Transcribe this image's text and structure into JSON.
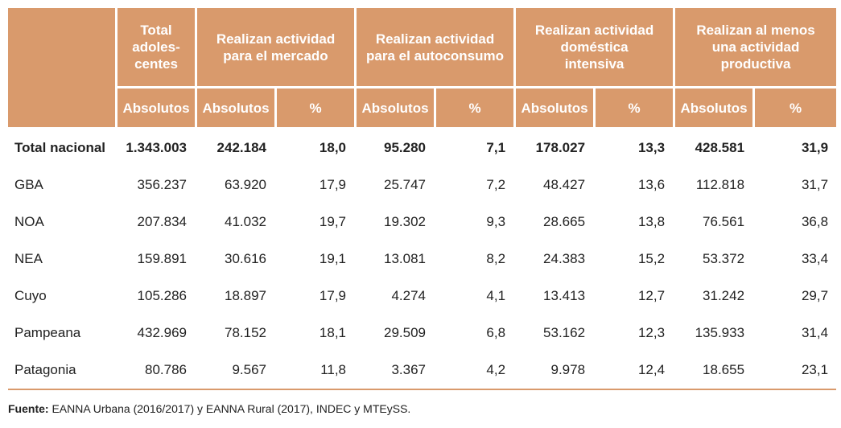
{
  "header": {
    "total": "Total adoles-centes",
    "mercado": "Realizan actividad para el mercado",
    "autoconsumo": "Realizan actividad para el autoconsumo",
    "domestica": "Realizan actividad doméstica intensiva",
    "productiva": "Realizan al menos una actividad productiva",
    "absolutos": "Absolutos",
    "pct": "%"
  },
  "rows": [
    {
      "name": "Total nacional",
      "cells": [
        "1.343.003",
        "242.184",
        "18,0",
        "95.280",
        "7,1",
        "178.027",
        "13,3",
        "428.581",
        "31,9"
      ]
    },
    {
      "name": "GBA",
      "cells": [
        "356.237",
        "63.920",
        "17,9",
        "25.747",
        "7,2",
        "48.427",
        "13,6",
        "112.818",
        "31,7"
      ]
    },
    {
      "name": "NOA",
      "cells": [
        "207.834",
        "41.032",
        "19,7",
        "19.302",
        "9,3",
        "28.665",
        "13,8",
        "76.561",
        "36,8"
      ]
    },
    {
      "name": "NEA",
      "cells": [
        "159.891",
        "30.616",
        "19,1",
        "13.081",
        "8,2",
        "24.383",
        "15,2",
        "53.372",
        "33,4"
      ]
    },
    {
      "name": "Cuyo",
      "cells": [
        "105.286",
        "18.897",
        "17,9",
        "4.274",
        "4,1",
        "13.413",
        "12,7",
        "31.242",
        "29,7"
      ]
    },
    {
      "name": "Pampeana",
      "cells": [
        "432.969",
        "78.152",
        "18,1",
        "29.509",
        "6,8",
        "53.162",
        "12,3",
        "135.933",
        "31,4"
      ]
    },
    {
      "name": "Patagonia",
      "cells": [
        "80.786",
        "9.567",
        "11,8",
        "3.367",
        "4,2",
        "9.978",
        "12,4",
        "18.655",
        "23,1"
      ]
    }
  ],
  "source": {
    "label": "Fuente:",
    "text": " EANNA Urbana (2016/2017) y EANNA Rural (2017), INDEC y MTEySS."
  },
  "colors": {
    "header_bg": "#d99a6c",
    "header_text": "#ffffff"
  }
}
